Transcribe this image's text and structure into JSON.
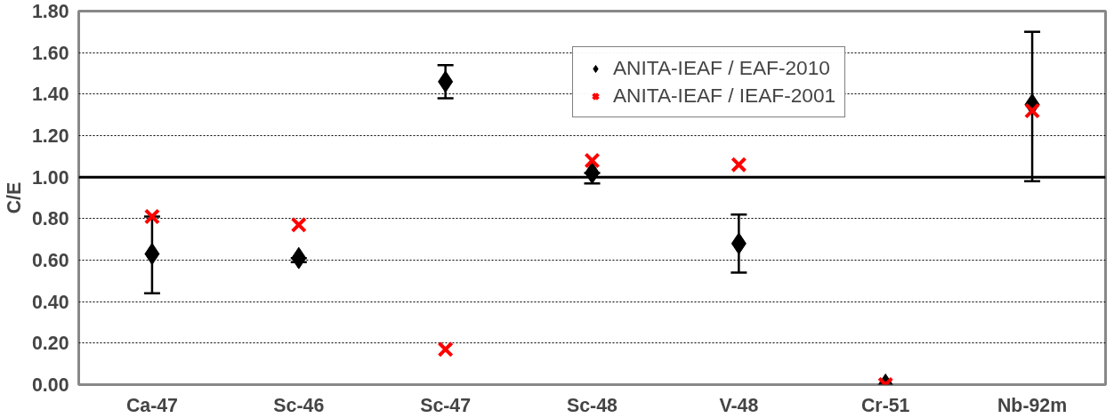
{
  "chart_data": {
    "type": "scatter",
    "ylabel": "C/E",
    "categories": [
      "Ca-47",
      "Sc-46",
      "Sc-47",
      "Sc-48",
      "V-48",
      "Cr-51",
      "Nb-92m"
    ],
    "series": [
      {
        "name": "ANITA-IEAF / EAF-2010",
        "color": "#000000",
        "marker": "diamond",
        "values": [
          0.63,
          0.61,
          1.46,
          1.02,
          0.68,
          0.0,
          1.35
        ],
        "errors": [
          [
            0.44,
            0.81
          ],
          [
            0.59,
            0.61
          ],
          [
            1.38,
            1.54
          ],
          [
            0.97,
            1.02
          ],
          [
            0.54,
            0.82
          ],
          null,
          [
            0.98,
            1.7
          ]
        ]
      },
      {
        "name": "ANITA-IEAF / IEAF-2001",
        "color": "#ff0000",
        "marker": "cross",
        "values": [
          0.81,
          0.77,
          0.17,
          1.08,
          1.06,
          0.0,
          1.32
        ]
      }
    ],
    "ylim": [
      0,
      1.8
    ],
    "yticks": [
      {
        "value": 0,
        "label": "0.00"
      },
      {
        "value": 0.2,
        "label": "0.20"
      },
      {
        "value": 0.4,
        "label": "0.40"
      },
      {
        "value": 0.6,
        "label": "0.60"
      },
      {
        "value": 0.8,
        "label": "0.80"
      },
      {
        "value": 1.0,
        "label": "1.00"
      },
      {
        "value": 1.2,
        "label": "1.20"
      },
      {
        "value": 1.4,
        "label": "1.40"
      },
      {
        "value": 1.6,
        "label": "1.60"
      },
      {
        "value": 1.8,
        "label": "1.80"
      }
    ],
    "ref_lines": [
      {
        "axis": "y",
        "value": 1.0,
        "label": null,
        "color": "#000000",
        "line_style": "solid"
      }
    ],
    "grid": "y",
    "legend": "top right"
  }
}
